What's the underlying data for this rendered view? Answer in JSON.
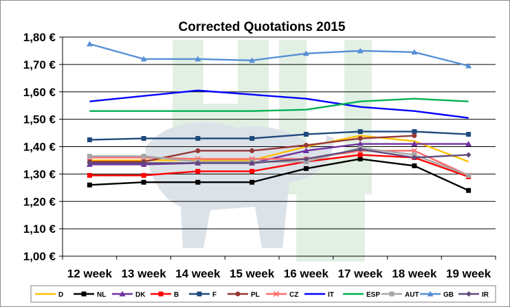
{
  "chart_data": {
    "type": "line",
    "title": "Corrected Quotations 2015",
    "xlabel": "",
    "ylabel": "",
    "categories": [
      "12 week",
      "13 week",
      "14 week",
      "15 week",
      "16 week",
      "17 week",
      "18 week",
      "19 week"
    ],
    "ylim": [
      1.0,
      1.8
    ],
    "ytick_values": [
      1.0,
      1.1,
      1.2,
      1.3,
      1.4,
      1.5,
      1.6,
      1.7,
      1.8
    ],
    "ytick_labels": [
      "1,00 €",
      "1,10 €",
      "1,20 €",
      "1,30 €",
      "1,40 €",
      "1,50 €",
      "1,60 €",
      "1,70 €",
      "1,80 €"
    ],
    "grid": true,
    "legend_position": "bottom",
    "series": [
      {
        "name": "D",
        "color": "#ffc000",
        "marker": "none",
        "values": [
          1.35,
          1.35,
          1.35,
          1.35,
          1.4,
          1.44,
          1.42,
          1.345
        ]
      },
      {
        "name": "NL",
        "color": "#000000",
        "marker": "square",
        "values": [
          1.26,
          1.27,
          1.27,
          1.27,
          1.32,
          1.355,
          1.33,
          1.24
        ]
      },
      {
        "name": "DK",
        "color": "#7030a0",
        "marker": "triangle",
        "values": [
          1.335,
          1.335,
          1.34,
          1.34,
          1.385,
          1.41,
          1.41,
          1.41
        ]
      },
      {
        "name": "B",
        "color": "#ff0000",
        "marker": "square",
        "values": [
          1.295,
          1.295,
          1.31,
          1.31,
          1.345,
          1.37,
          1.36,
          1.29
        ]
      },
      {
        "name": "F",
        "color": "#1f497d",
        "marker": "square",
        "values": [
          1.425,
          1.43,
          1.43,
          1.43,
          1.445,
          1.455,
          1.455,
          1.445
        ]
      },
      {
        "name": "PL",
        "color": "#953735",
        "marker": "circle",
        "values": [
          1.345,
          1.345,
          1.385,
          1.385,
          1.405,
          1.43,
          1.44,
          null
        ]
      },
      {
        "name": "CZ",
        "color": "#ff6b6b",
        "marker": "x",
        "values": [
          1.36,
          1.36,
          1.355,
          1.355,
          1.355,
          1.385,
          1.385,
          1.295
        ]
      },
      {
        "name": "IT",
        "color": "#0000ff",
        "marker": "none",
        "values": [
          1.565,
          1.585,
          1.605,
          1.59,
          1.575,
          1.545,
          1.53,
          1.505
        ]
      },
      {
        "name": "ESP",
        "color": "#00b050",
        "marker": "none",
        "values": [
          1.53,
          1.53,
          1.53,
          1.53,
          1.535,
          1.565,
          1.575,
          1.565
        ]
      },
      {
        "name": "AUT",
        "color": "#a6a6a6",
        "marker": "square",
        "values": [
          1.365,
          1.365,
          1.345,
          1.345,
          1.345,
          1.395,
          1.37,
          1.295
        ]
      },
      {
        "name": "GB",
        "color": "#558ed5",
        "marker": "triangle",
        "values": [
          1.775,
          1.72,
          1.72,
          1.715,
          1.74,
          1.75,
          1.745,
          1.695
        ]
      },
      {
        "name": "IR",
        "color": "#604a7b",
        "marker": "diamond",
        "values": [
          1.34,
          1.34,
          1.34,
          1.34,
          1.355,
          1.39,
          1.36,
          1.37
        ]
      }
    ]
  }
}
